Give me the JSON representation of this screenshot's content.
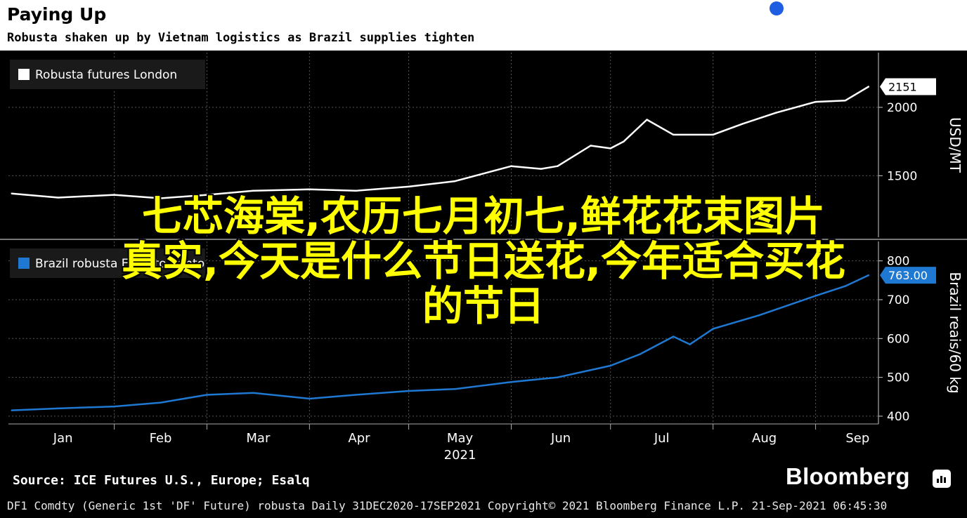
{
  "header": {
    "title": "Paying Up",
    "subtitle": "Robusta shaken up by Vietnam logistics as Brazil supplies tighten"
  },
  "chart_data": [
    {
      "type": "line",
      "legend": "top-left",
      "grid": true,
      "ylabel": "USD/MT",
      "ylim": [
        1050,
        2400
      ],
      "yticks": [
        1500,
        2000
      ],
      "series": [
        {
          "name": "Robusta futures London",
          "color": "#ffffff",
          "last_value_label": "2151",
          "x": [
            "2021-01-01",
            "2021-01-15",
            "2021-02-01",
            "2021-02-15",
            "2021-03-01",
            "2021-03-15",
            "2021-04-01",
            "2021-04-15",
            "2021-05-01",
            "2021-05-15",
            "2021-06-01",
            "2021-06-10",
            "2021-06-15",
            "2021-06-25",
            "2021-07-01",
            "2021-07-05",
            "2021-07-12",
            "2021-07-20",
            "2021-08-01",
            "2021-08-10",
            "2021-08-20",
            "2021-09-01",
            "2021-09-10",
            "2021-09-17"
          ],
          "values": [
            1370,
            1340,
            1360,
            1335,
            1360,
            1390,
            1400,
            1390,
            1420,
            1460,
            1570,
            1550,
            1570,
            1720,
            1700,
            1750,
            1910,
            1800,
            1800,
            1880,
            1960,
            2040,
            2050,
            2151
          ]
        }
      ]
    },
    {
      "type": "line",
      "legend": "top-left",
      "grid": true,
      "ylabel": "Brazil reais/60 kg",
      "ylim": [
        380,
        850
      ],
      "yticks": [
        400,
        500,
        600,
        700,
        800
      ],
      "series": [
        {
          "name": "Brazil robusta Espirito Santo",
          "color": "#1f78d1",
          "last_value_label": "763.00",
          "x": [
            "2021-01-01",
            "2021-01-15",
            "2021-02-01",
            "2021-02-15",
            "2021-03-01",
            "2021-03-15",
            "2021-04-01",
            "2021-04-15",
            "2021-05-01",
            "2021-05-15",
            "2021-06-01",
            "2021-06-15",
            "2021-07-01",
            "2021-07-10",
            "2021-07-20",
            "2021-07-25",
            "2021-08-01",
            "2021-08-15",
            "2021-09-01",
            "2021-09-10",
            "2021-09-17"
          ],
          "values": [
            415,
            420,
            425,
            435,
            455,
            460,
            445,
            455,
            465,
            470,
            488,
            500,
            530,
            560,
            605,
            585,
            625,
            660,
            710,
            735,
            763
          ]
        }
      ]
    }
  ],
  "xaxis": {
    "months": [
      "Jan",
      "Feb",
      "Mar",
      "Apr",
      "May",
      "Jun",
      "Jul",
      "Aug",
      "Sep"
    ],
    "year_label": "2021"
  },
  "overlay": {
    "line1": "七芯海棠,农历七月初七,鲜花花束图片",
    "line2": "真实,今天是什么节日送花,今年适合买花",
    "line3": "的节日"
  },
  "footer": {
    "source": "Source: ICE Futures U.S., Europe; Esalq",
    "brand": "Bloomberg",
    "copyright": "DF1 Comdty (Generic 1st 'DF' Future) robusta  Daily 31DEC2020-17SEP2021  Copyright© 2021 Bloomberg Finance L.P.  21-Sep-2021 06:45:30"
  }
}
